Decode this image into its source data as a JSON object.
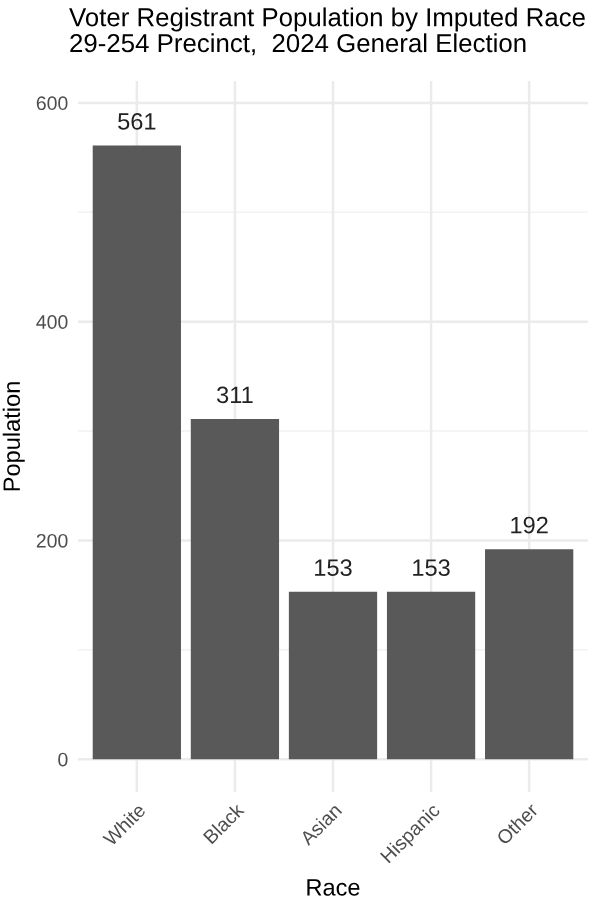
{
  "chart_data": {
    "type": "bar",
    "title": "Voter Registrant Population by Imputed Race",
    "subtitle": "29-254 Precinct,  2024 General Election",
    "xlabel": "Race",
    "ylabel": "Population",
    "categories": [
      "White",
      "Black",
      "Asian",
      "Hispanic",
      "Other"
    ],
    "values": [
      561,
      311,
      153,
      153,
      192
    ],
    "color": "#595959",
    "data_labels": true,
    "ylim": [
      -30,
      620
    ],
    "yticks": [
      0,
      200,
      400,
      600
    ],
    "grid": true
  }
}
